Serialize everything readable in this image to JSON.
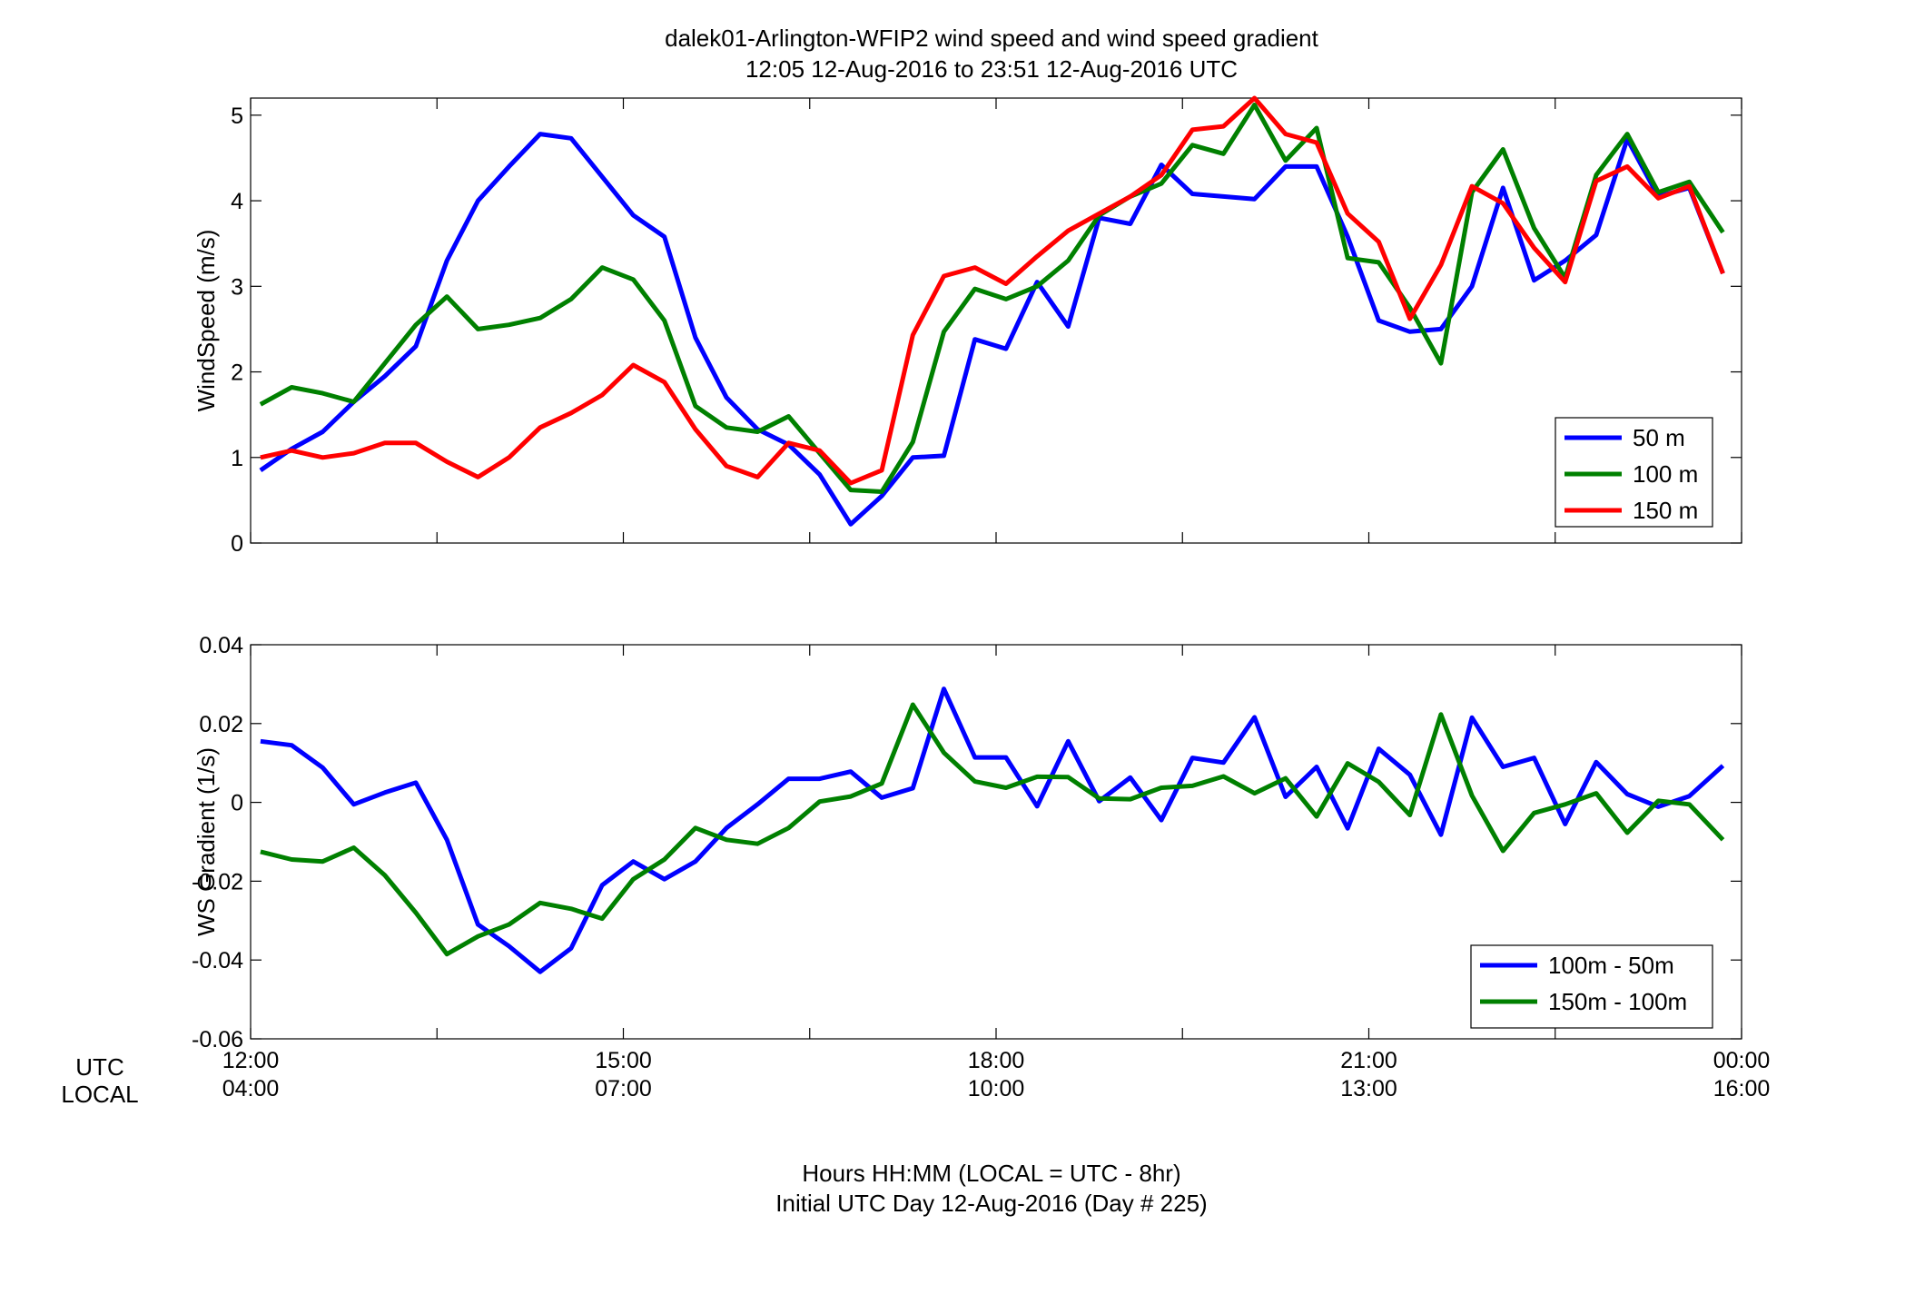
{
  "title": "dalek01-Arlington-WFIP2  wind speed and wind speed gradient",
  "subtitle": "12:05 12-Aug-2016 to 23:51 12-Aug-2016  UTC",
  "xlabel_line1": "Hours HH:MM  (LOCAL = UTC - 8hr)",
  "xlabel_line2": "Initial UTC Day 12-Aug-2016 (Day # 225)",
  "row_label_utc": "UTC",
  "row_label_local": "LOCAL",
  "xticks_utc": [
    "12:00",
    "15:00",
    "18:00",
    "21:00",
    "00:00"
  ],
  "xticks_local": [
    "04:00",
    "07:00",
    "10:00",
    "13:00",
    "16:00"
  ],
  "chart_data": [
    {
      "type": "line",
      "ylabel": "WindSpeed (m/s)",
      "xlim": [
        12.0,
        24.0
      ],
      "ylim": [
        0,
        5.2
      ],
      "yticks": [
        0,
        1,
        2,
        3,
        4,
        5
      ],
      "ytick_labels": [
        "0",
        "1",
        "2",
        "3",
        "4",
        "5"
      ],
      "grid": false,
      "legend_position": "bottom-right",
      "x": [
        12.08,
        12.33,
        12.58,
        12.83,
        13.08,
        13.33,
        13.58,
        13.83,
        14.08,
        14.33,
        14.58,
        14.83,
        15.08,
        15.33,
        15.58,
        15.83,
        16.08,
        16.33,
        16.58,
        16.83,
        17.08,
        17.33,
        17.58,
        17.83,
        18.08,
        18.33,
        18.58,
        18.83,
        19.08,
        19.33,
        19.58,
        19.83,
        20.08,
        20.33,
        20.58,
        20.83,
        21.08,
        21.33,
        21.58,
        21.83,
        22.08,
        22.33,
        22.58,
        22.83,
        23.08,
        23.33,
        23.58,
        23.85
      ],
      "series": [
        {
          "name": "50 m",
          "color": "#0000ff",
          "values": [
            0.85,
            1.1,
            1.3,
            1.65,
            1.95,
            2.3,
            3.3,
            4.0,
            4.4,
            4.78,
            4.73,
            4.28,
            3.83,
            3.58,
            2.4,
            1.7,
            1.33,
            1.15,
            0.8,
            0.22,
            0.55,
            1.0,
            1.02,
            2.38,
            2.27,
            3.05,
            2.53,
            3.8,
            3.73,
            4.42,
            4.08,
            4.05,
            4.02,
            4.4,
            4.4,
            3.58,
            2.6,
            2.47,
            2.5,
            3.0,
            4.15,
            3.07,
            3.3,
            3.6,
            4.72,
            4.05,
            4.15,
            3.15
          ]
        },
        {
          "name": "100 m",
          "color": "#008000",
          "values": [
            1.62,
            1.82,
            1.75,
            1.65,
            2.1,
            2.55,
            2.88,
            2.5,
            2.55,
            2.63,
            2.85,
            3.22,
            3.08,
            2.6,
            1.6,
            1.35,
            1.3,
            1.48,
            1.05,
            0.62,
            0.6,
            1.18,
            2.47,
            2.97,
            2.85,
            3.0,
            3.3,
            3.83,
            4.05,
            4.2,
            4.65,
            4.55,
            5.12,
            4.47,
            4.85,
            3.33,
            3.28,
            2.75,
            2.1,
            4.1,
            4.6,
            3.68,
            3.1,
            4.3,
            4.78,
            4.1,
            4.22,
            3.63
          ]
        },
        {
          "name": "150 m",
          "color": "#ff0000",
          "values": [
            1.0,
            1.08,
            1.0,
            1.05,
            1.17,
            1.17,
            0.95,
            0.77,
            1.0,
            1.35,
            1.52,
            1.73,
            2.08,
            1.88,
            1.33,
            0.9,
            0.77,
            1.17,
            1.08,
            0.7,
            0.85,
            2.43,
            3.12,
            3.22,
            3.03,
            3.35,
            3.65,
            3.85,
            4.05,
            4.3,
            4.83,
            4.87,
            5.2,
            4.78,
            4.68,
            3.85,
            3.52,
            2.62,
            3.25,
            4.17,
            3.97,
            3.45,
            3.05,
            4.23,
            4.4,
            4.03,
            4.17,
            3.15
          ]
        }
      ]
    },
    {
      "type": "line",
      "ylabel": "WS Gradient (1/s)",
      "xlim": [
        12.0,
        24.0
      ],
      "ylim": [
        -0.06,
        0.04
      ],
      "yticks": [
        -0.06,
        -0.04,
        -0.02,
        0,
        0.02,
        0.04
      ],
      "ytick_labels": [
        "-0.06",
        "-0.04",
        "-0.02",
        "0",
        "0.02",
        "0.04"
      ],
      "grid": false,
      "legend_position": "bottom-right",
      "x": [
        12.08,
        12.33,
        12.58,
        12.83,
        13.08,
        13.33,
        13.58,
        13.83,
        14.08,
        14.33,
        14.58,
        14.83,
        15.08,
        15.33,
        15.58,
        15.83,
        16.08,
        16.33,
        16.58,
        16.83,
        17.08,
        17.33,
        17.58,
        17.83,
        18.08,
        18.33,
        18.58,
        18.83,
        19.08,
        19.33,
        19.58,
        19.83,
        20.08,
        20.33,
        20.58,
        20.83,
        21.08,
        21.33,
        21.58,
        21.83,
        22.08,
        22.33,
        22.58,
        22.83,
        23.08,
        23.33,
        23.58,
        23.85
      ],
      "series": [
        {
          "name": "100m - 50m",
          "color": "#0000ff",
          "values": [
            0.0155,
            0.0145,
            0.0088,
            -0.0005,
            0.0025,
            0.005,
            -0.0095,
            -0.031,
            -0.0365,
            -0.043,
            -0.037,
            -0.021,
            -0.015,
            -0.0195,
            -0.015,
            -0.0065,
            -0.0005,
            0.006,
            0.006,
            0.0078,
            0.0012,
            0.0036,
            0.0288,
            0.0114,
            0.0114,
            -0.001,
            0.0155,
            0.0003,
            0.0063,
            -0.0045,
            0.0113,
            0.0101,
            0.0216,
            0.0014,
            0.009,
            -0.0066,
            0.0136,
            0.007,
            -0.0082,
            0.0215,
            0.009,
            0.0113,
            -0.0055,
            0.0102,
            0.0021,
            -0.0011,
            0.0016,
            0.0093
          ]
        },
        {
          "name": "150m - 100m",
          "color": "#008000",
          "values": [
            -0.0125,
            -0.0145,
            -0.015,
            -0.0115,
            -0.0185,
            -0.028,
            -0.0385,
            -0.034,
            -0.031,
            -0.0255,
            -0.027,
            -0.0295,
            -0.0195,
            -0.0145,
            -0.0065,
            -0.0095,
            -0.0105,
            -0.0065,
            0.0002,
            0.0015,
            0.0048,
            0.0248,
            0.0126,
            0.0053,
            0.0037,
            0.0065,
            0.0064,
            0.001,
            0.0008,
            0.0037,
            0.0042,
            0.0066,
            0.0023,
            0.0061,
            -0.0036,
            0.0099,
            0.0052,
            -0.0032,
            0.0223,
            0.0017,
            -0.0123,
            -0.0027,
            -0.0005,
            0.0023,
            -0.0077,
            0.0004,
            -0.0005,
            -0.0095
          ]
        }
      ]
    }
  ]
}
